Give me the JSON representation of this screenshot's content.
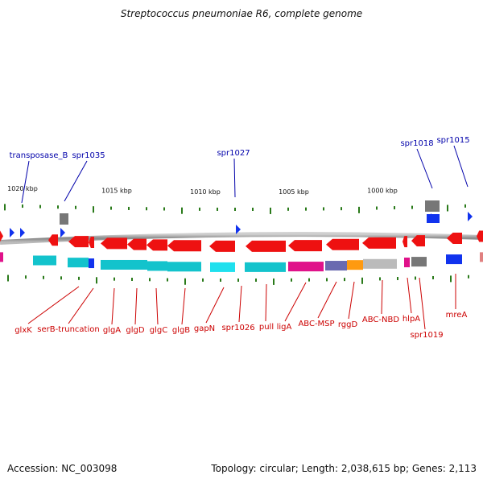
{
  "title": "Streptococcus pneumoniae R6, complete genome",
  "footer": {
    "accession": "Accession: NC_003098",
    "stats": "Topology: circular; Length: 2,038,615 bp; Genes: 2,113"
  },
  "colors": {
    "forward_gene": "#ee1111",
    "reverse_gene": "#ee1111",
    "cds_cyan": "#13c3cc",
    "cds_magenta": "#e0128a",
    "cds_orange": "#ff9a10",
    "cds_gray": "#bbbbbb",
    "blue_feature": "#1133ee",
    "gray_feature": "#777777",
    "tick_green": "#2a7a1a",
    "backbone": "#888888",
    "label_red": "#cc0000",
    "label_blue": "#0000aa"
  },
  "scale_labels": [
    "1020 kbp",
    "1015 kbp",
    "1010 kbp",
    "1005 kbp",
    "1000 kbp"
  ],
  "top_labels": [
    "transposase_B",
    "spr1035",
    "spr1027",
    "spr1018",
    "spr1015"
  ],
  "bottom_labels": [
    "glxK",
    "serB-truncation",
    "glgA",
    "glgD",
    "glgC",
    "glgB",
    "gapN",
    "spr1026",
    "pull",
    "ligA",
    "ABC-MSP",
    "rggD",
    "ABC-NBD",
    "hlpA",
    "spr1019",
    "mreA"
  ]
}
